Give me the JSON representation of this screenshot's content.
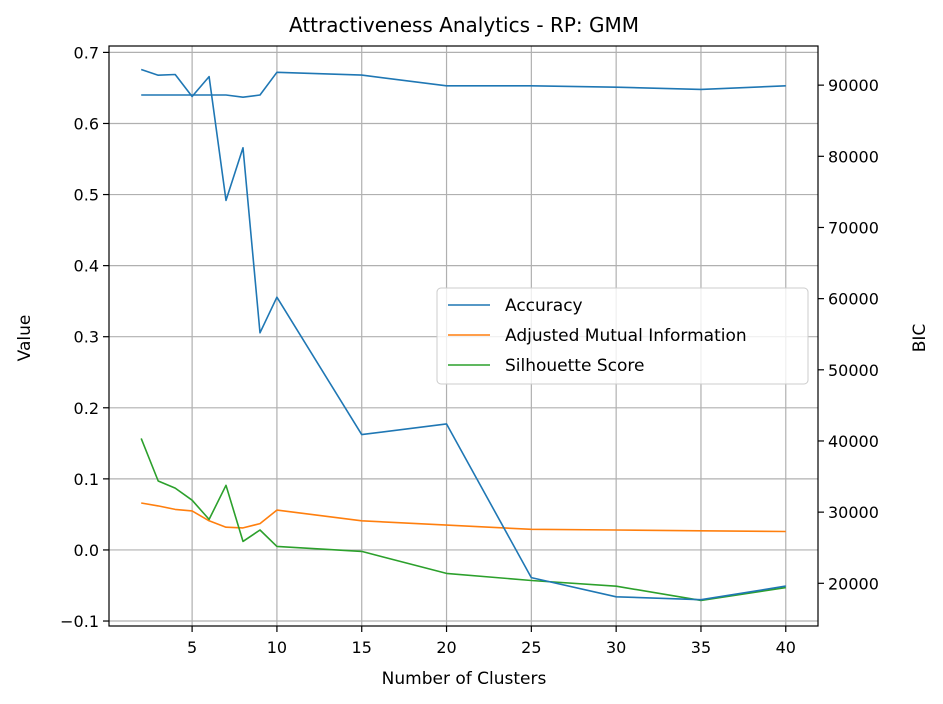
{
  "chart_data": {
    "type": "line",
    "title": "Attractiveness Analytics - RP: GMM",
    "xlabel": "Number of Clusters",
    "ylabel": "Value",
    "ylabel_right": "BIC",
    "xlim": [
      0.1,
      41.9
    ],
    "ylim": [
      -0.107,
      0.709
    ],
    "ylim_right": [
      14000,
      95500
    ],
    "xticks": [
      5,
      10,
      15,
      20,
      25,
      30,
      35,
      40
    ],
    "yticks": [
      -0.1,
      0.0,
      0.1,
      0.2,
      0.3,
      0.4,
      0.5,
      0.6,
      0.7
    ],
    "yticks_right": [
      20000,
      30000,
      40000,
      50000,
      60000,
      70000,
      80000,
      90000
    ],
    "xtick_labels": [
      "5",
      "10",
      "15",
      "20",
      "25",
      "30",
      "35",
      "40"
    ],
    "ytick_labels": [
      "−0.1",
      "0.0",
      "0.1",
      "0.2",
      "0.3",
      "0.4",
      "0.5",
      "0.6",
      "0.7"
    ],
    "ytick_labels_right": [
      "20000",
      "30000",
      "40000",
      "50000",
      "60000",
      "70000",
      "80000",
      "90000"
    ],
    "grid": true,
    "legend_position": "center-right",
    "series": [
      {
        "name": "Accuracy",
        "axis": "left",
        "color": "#1f77b4",
        "x": [
          2,
          3,
          4,
          5,
          6,
          7,
          8,
          9,
          10,
          15,
          20,
          25,
          30,
          35,
          40
        ],
        "values": [
          0.64,
          0.64,
          0.64,
          0.64,
          0.64,
          0.64,
          0.637,
          0.64,
          0.672,
          0.668,
          0.653,
          0.653,
          0.651,
          0.648,
          0.653
        ]
      },
      {
        "name": "Adjusted Mutual Information",
        "axis": "left",
        "color": "#ff7f0e",
        "x": [
          2,
          3,
          4,
          5,
          6,
          7,
          8,
          9,
          10,
          15,
          20,
          25,
          30,
          35,
          40
        ],
        "values": [
          0.066,
          0.062,
          0.057,
          0.055,
          0.041,
          0.032,
          0.031,
          0.037,
          0.056,
          0.041,
          0.035,
          0.029,
          0.028,
          0.027,
          0.026
        ]
      },
      {
        "name": "Silhouette Score",
        "axis": "left",
        "color": "#2ca02c",
        "x": [
          2,
          3,
          4,
          5,
          6,
          7,
          8,
          9,
          10,
          15,
          20,
          25,
          30,
          35,
          40
        ],
        "values": [
          0.157,
          0.097,
          0.087,
          0.07,
          0.043,
          0.091,
          0.012,
          0.028,
          0.005,
          -0.002,
          -0.033,
          -0.043,
          -0.051,
          -0.071,
          -0.053
        ]
      },
      {
        "name": "",
        "axis": "right",
        "color": "#1f77b4",
        "x": [
          2,
          3,
          4,
          5,
          6,
          7,
          8,
          9,
          10,
          15,
          20,
          25,
          30,
          35,
          40
        ],
        "values": [
          92200,
          91400,
          91500,
          88400,
          91200,
          73800,
          81200,
          55200,
          60200,
          40900,
          42400,
          20800,
          18100,
          17700,
          19600
        ]
      }
    ],
    "legend": [
      "Accuracy",
      "Adjusted Mutual Information",
      "Silhouette Score"
    ]
  }
}
